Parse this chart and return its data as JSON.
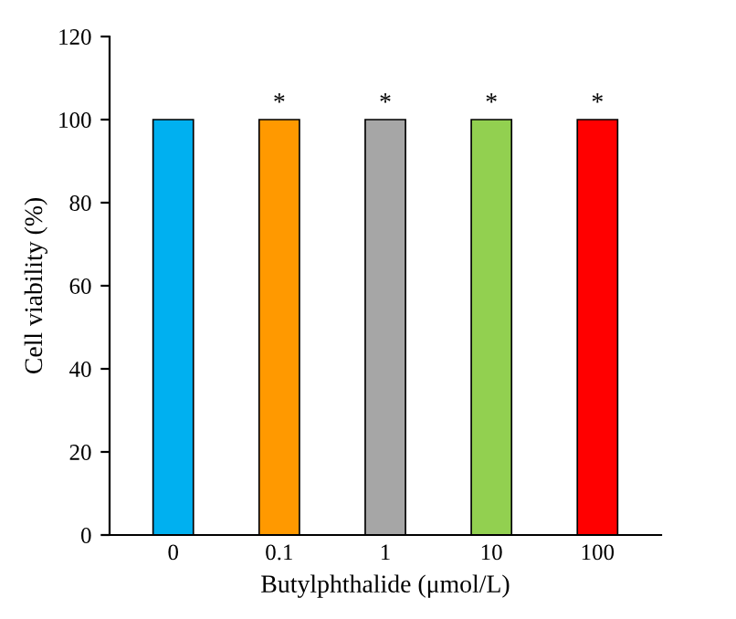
{
  "chart_data": {
    "type": "bar",
    "xlabel": "Butylphthalide (μmol/L)",
    "ylabel": "Cell viability (%)",
    "categories": [
      "0",
      "0.1",
      "1",
      "10",
      "100"
    ],
    "values": [
      100,
      100,
      100,
      100,
      100
    ],
    "colors": [
      "#00b0f0",
      "#ff9900",
      "#a6a6a6",
      "#92d050",
      "#ff0000"
    ],
    "ylim": [
      0,
      120
    ],
    "yticks": [
      0,
      20,
      40,
      60,
      80,
      100,
      120
    ],
    "grid": false,
    "annotations": [
      {
        "text": "*",
        "x": "0.1",
        "y": 101
      },
      {
        "text": "*",
        "x": "1",
        "y": 101
      },
      {
        "text": "*",
        "x": "10",
        "y": 101
      },
      {
        "text": "*",
        "x": "100",
        "y": 101
      }
    ]
  }
}
